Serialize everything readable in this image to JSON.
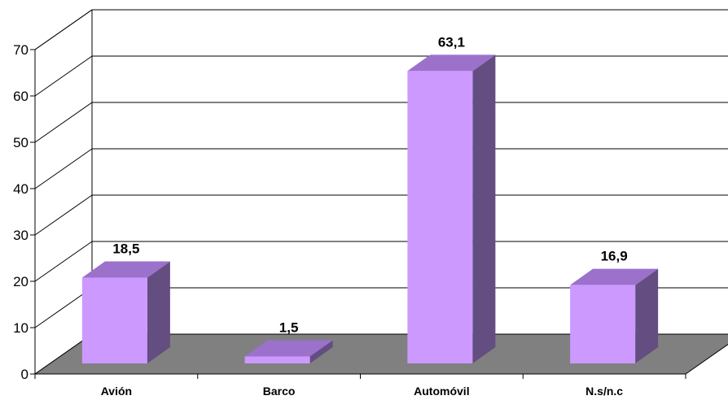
{
  "chart_data": {
    "type": "bar",
    "title": "",
    "xlabel": "",
    "ylabel": "",
    "categories": [
      "Avión",
      "Barco",
      "Automóvil",
      "N.s/n.c"
    ],
    "values": [
      18.5,
      1.5,
      63.1,
      16.9
    ],
    "data_labels": [
      "18,5",
      "1,5",
      "63,1",
      "16,9"
    ],
    "ylim": [
      0,
      70
    ],
    "yticks": [
      "0",
      "10",
      "20",
      "30",
      "40",
      "50",
      "60",
      "70"
    ],
    "grid": true,
    "style": "3d",
    "colors": {
      "bar_front": "#cc99ff",
      "bar_top": "#9b71cc",
      "bar_side": "#644d80",
      "floor": "#808080"
    }
  }
}
